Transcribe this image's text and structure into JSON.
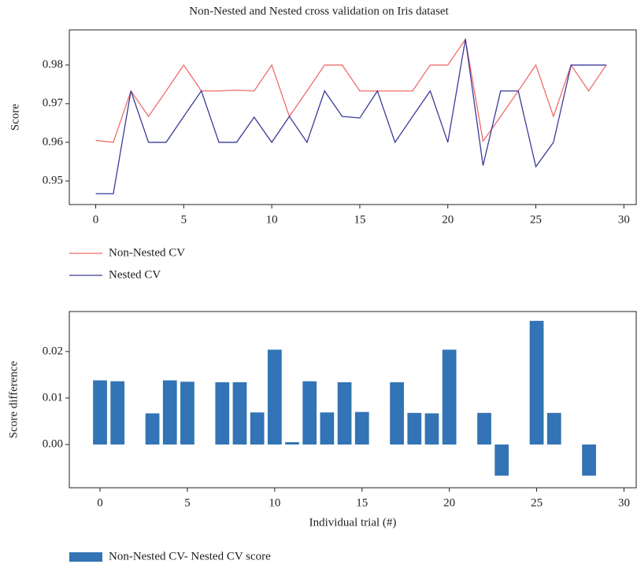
{
  "chart_data": [
    {
      "type": "line",
      "title": "Non-Nested and Nested cross validation on Iris dataset",
      "ylabel": "Score",
      "x": [
        0,
        1,
        2,
        3,
        4,
        5,
        6,
        7,
        8,
        9,
        10,
        11,
        12,
        13,
        14,
        15,
        16,
        17,
        18,
        19,
        20,
        21,
        22,
        23,
        24,
        25,
        26,
        27,
        28,
        29
      ],
      "series": [
        {
          "name": "Non-Nested CV",
          "color": "#f26b6b",
          "values": [
            0.9605,
            0.96,
            0.9733,
            0.9667,
            0.9733,
            0.98,
            0.9733,
            0.9733,
            0.9735,
            0.9733,
            0.98,
            0.9667,
            0.9733,
            0.98,
            0.98,
            0.9733,
            0.9733,
            0.9733,
            0.9733,
            0.98,
            0.98,
            0.9867,
            0.9603,
            0.9667,
            0.9733,
            0.98,
            0.9667,
            0.98,
            0.9733,
            0.98
          ]
        },
        {
          "name": "Nested CV",
          "color": "#3a3a9a",
          "values": [
            0.9467,
            0.9467,
            0.9733,
            0.96,
            0.96,
            0.9667,
            0.9733,
            0.96,
            0.96,
            0.9665,
            0.96,
            0.9667,
            0.96,
            0.9733,
            0.9667,
            0.9663,
            0.9733,
            0.96,
            0.9667,
            0.9733,
            0.96,
            0.9867,
            0.954,
            0.9733,
            0.9733,
            0.9537,
            0.96,
            0.98,
            0.98,
            0.98
          ]
        }
      ],
      "xlim": [
        -1.5,
        30.7
      ],
      "xticks": [
        0,
        5,
        10,
        15,
        20,
        25,
        30
      ],
      "ylim": [
        0.9439,
        0.9891
      ],
      "yticks": [
        {
          "value": 0.95,
          "label": "0.95"
        },
        {
          "value": 0.96,
          "label": "0.96"
        },
        {
          "value": 0.97,
          "label": "0.97"
        },
        {
          "value": 0.98,
          "label": "0.98"
        }
      ],
      "legend": "below"
    },
    {
      "type": "bar",
      "xlabel": "Individual trial (#)",
      "ylabel": "Score difference",
      "x": [
        0,
        1,
        2,
        3,
        4,
        5,
        6,
        7,
        8,
        9,
        10,
        11,
        12,
        13,
        14,
        15,
        16,
        17,
        18,
        19,
        20,
        21,
        22,
        23,
        24,
        25,
        26,
        27,
        28,
        29
      ],
      "series": [
        {
          "name": "Non-Nested CV- Nested CV score",
          "color": "#3274b5",
          "values": [
            0.0138,
            0.0136,
            0,
            0.0067,
            0.0138,
            0.0135,
            0,
            0.0134,
            0.0134,
            0.0069,
            0.0204,
            0.0005,
            0.0136,
            0.0069,
            0.0134,
            0.007,
            0,
            0.0134,
            0.0068,
            0.0067,
            0.0204,
            0,
            0.0068,
            -0.0067,
            0,
            0.0266,
            0.0068,
            0,
            -0.0067,
            0
          ]
        }
      ],
      "xlim": [
        -1.76,
        30.7
      ],
      "xticks": [
        0,
        5,
        10,
        15,
        20,
        25,
        30
      ],
      "ylim": [
        -0.0093,
        0.0286
      ],
      "yticks": [
        {
          "value": 0,
          "label": "0.00"
        },
        {
          "value": 0.01,
          "label": "0.01"
        },
        {
          "value": 0.02,
          "label": "0.02"
        }
      ],
      "legend": "below"
    }
  ]
}
